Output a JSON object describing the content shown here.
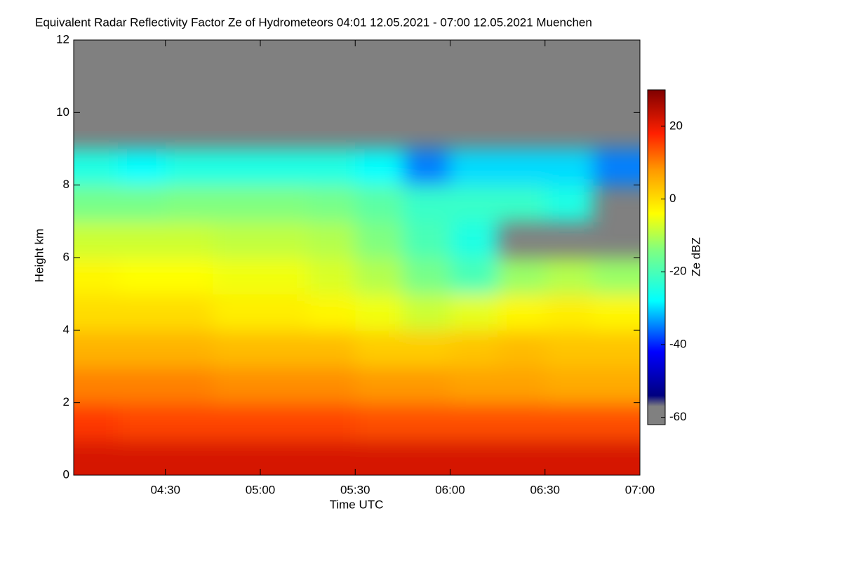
{
  "chart_data": {
    "type": "heatmap",
    "title": "Equivalent Radar Reflectivity Factor Ze of Hydrometeors   04:01 12.05.2021 - 07:00 12.05.2021 Muenchen",
    "x_label": "Time UTC",
    "y_label": "Height km",
    "colorbar_label": "Ze dBZ",
    "x": [
      4.125,
      4.375,
      4.625,
      4.875,
      5.125,
      5.375,
      5.625,
      5.875,
      6.125,
      6.375,
      6.625,
      6.875
    ],
    "y": [
      0.5,
      1.5,
      2.5,
      3.5,
      4.5,
      5.5,
      6.5,
      7.5,
      8.5,
      9.5,
      10.5,
      11.5
    ],
    "z": [
      [
        22,
        22,
        22,
        22,
        22,
        22,
        22,
        22,
        22,
        22,
        22,
        22
      ],
      [
        16,
        15,
        15,
        15,
        15,
        15,
        14,
        14,
        14,
        14,
        14,
        14
      ],
      [
        10,
        10,
        10,
        9,
        9,
        9,
        8,
        8,
        7,
        7,
        6,
        6
      ],
      [
        5,
        5,
        5,
        4,
        4,
        4,
        2,
        2,
        3,
        4,
        3,
        3
      ],
      [
        0,
        0,
        0,
        -2,
        -2,
        -3,
        -5,
        -8,
        -6,
        -3,
        -2,
        -3
      ],
      [
        -3,
        -4,
        -4,
        -5,
        -5,
        -7,
        -10,
        -15,
        -20,
        -12,
        -10,
        -12
      ],
      [
        -8,
        -8,
        -8,
        -9,
        -9,
        -10,
        -14,
        -20,
        -25,
        null,
        null,
        null
      ],
      [
        -15,
        -15,
        -14,
        -14,
        -14,
        -15,
        -18,
        -22,
        -22,
        -22,
        -25,
        null
      ],
      [
        -25,
        -28,
        -25,
        -25,
        -25,
        -25,
        -28,
        -35,
        -30,
        -30,
        -30,
        -35
      ],
      [
        null,
        null,
        null,
        null,
        null,
        null,
        null,
        null,
        null,
        null,
        null,
        null
      ],
      [
        null,
        null,
        null,
        null,
        null,
        null,
        null,
        null,
        null,
        null,
        null,
        null
      ],
      [
        null,
        null,
        null,
        null,
        null,
        null,
        null,
        null,
        null,
        null,
        null,
        null
      ]
    ],
    "xlim": [
      4.016667,
      7
    ],
    "xticks": [
      {
        "value": 4.5,
        "label": "04:30"
      },
      {
        "value": 5,
        "label": "05:00"
      },
      {
        "value": 5.5,
        "label": "05:30"
      },
      {
        "value": 6,
        "label": "06:00"
      },
      {
        "value": 6.5,
        "label": "06:30"
      },
      {
        "value": 7,
        "label": "07:00"
      }
    ],
    "ylim": [
      0,
      12
    ],
    "yticks": [
      0,
      2,
      4,
      6,
      8,
      10,
      12
    ],
    "clim": [
      -62,
      30
    ],
    "cticks": [
      -60,
      -40,
      -20,
      0,
      20
    ],
    "background_color": "#808080",
    "colorscale": [
      [
        -62,
        "#808080"
      ],
      [
        -57,
        "#808080"
      ],
      [
        -54,
        "#000080"
      ],
      [
        -42,
        "#0000ff"
      ],
      [
        -28,
        "#00ffff"
      ],
      [
        -14,
        "#80ff80"
      ],
      [
        -4,
        "#ffff00"
      ],
      [
        8,
        "#ff9900"
      ],
      [
        18,
        "#ff2000"
      ],
      [
        30,
        "#800000"
      ]
    ]
  }
}
